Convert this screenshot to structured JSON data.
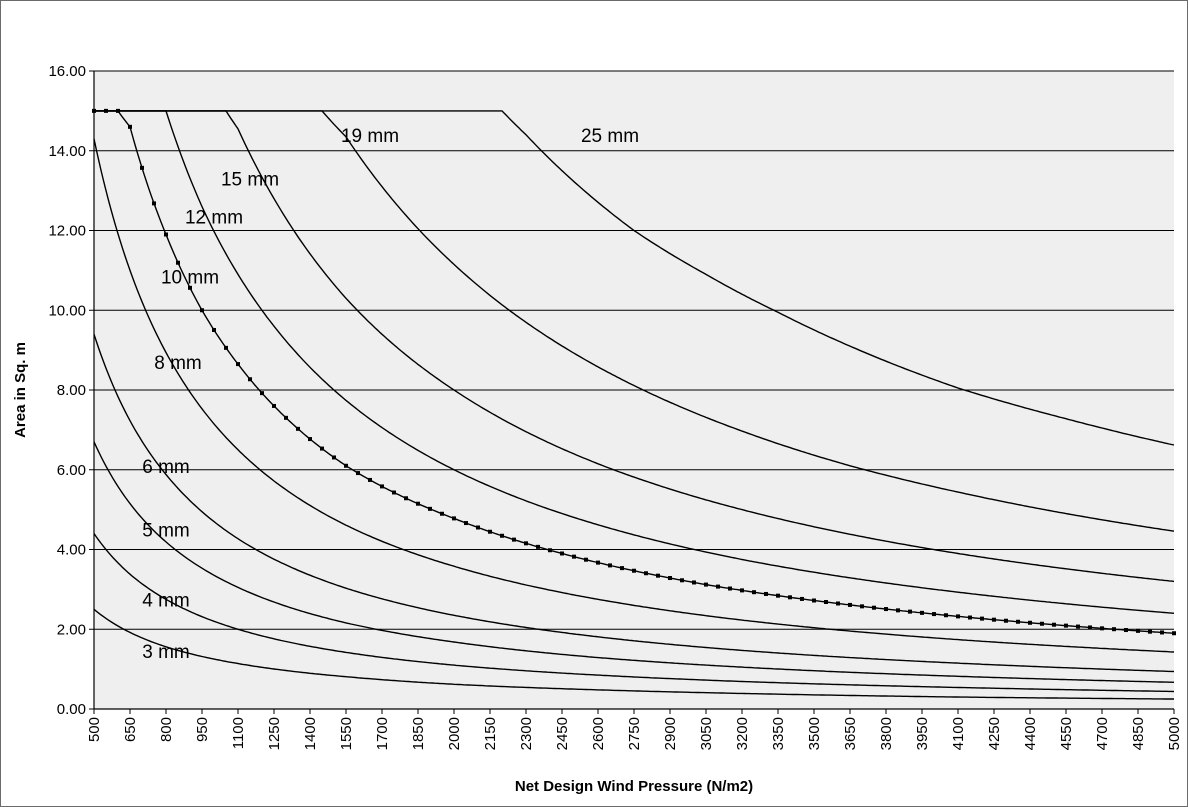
{
  "chart_data": {
    "type": "line",
    "title": "",
    "xlabel": "Net Design Wind Pressure (N/m2)",
    "ylabel": "Area in Sq. m",
    "xlim": [
      500,
      5000
    ],
    "ylim": [
      0,
      16
    ],
    "x_ticks": [
      500,
      650,
      800,
      950,
      1100,
      1250,
      1400,
      1550,
      1700,
      1850,
      2000,
      2150,
      2300,
      2450,
      2600,
      2750,
      2900,
      3050,
      3200,
      3350,
      3500,
      3650,
      3800,
      3950,
      4100,
      4250,
      4400,
      4550,
      4700,
      4850,
      5000
    ],
    "y_ticks": [
      "0.00",
      "2.00",
      "4.00",
      "6.00",
      "8.00",
      "10.00",
      "12.00",
      "14.00",
      "16.00"
    ],
    "grid": "horizontal",
    "plot_background": "#efefef",
    "line_color": "#000000",
    "cap_area": 15.0,
    "series": [
      {
        "name": "3 mm",
        "x": [
          500,
          650,
          800,
          1100,
          1550,
          2000,
          2600,
          3200,
          4100,
          5000
        ],
        "values": [
          2.5,
          1.92,
          1.56,
          1.14,
          0.81,
          0.62,
          0.48,
          0.39,
          0.3,
          0.25
        ]
      },
      {
        "name": "4 mm",
        "x": [
          500,
          650,
          800,
          1100,
          1550,
          2000,
          2600,
          3200,
          4100,
          5000
        ],
        "values": [
          4.4,
          3.38,
          2.75,
          2.0,
          1.42,
          1.1,
          0.85,
          0.69,
          0.54,
          0.44
        ]
      },
      {
        "name": "5 mm",
        "x": [
          500,
          650,
          800,
          1100,
          1550,
          2000,
          2600,
          3200,
          4100,
          5000
        ],
        "values": [
          6.7,
          5.15,
          4.19,
          3.05,
          2.16,
          1.68,
          1.29,
          1.05,
          0.82,
          0.67
        ]
      },
      {
        "name": "6 mm",
        "x": [
          500,
          650,
          800,
          1100,
          1550,
          2000,
          2600,
          3200,
          4100,
          5000
        ],
        "values": [
          9.4,
          7.23,
          5.88,
          4.27,
          3.03,
          2.35,
          1.81,
          1.47,
          1.15,
          0.94
        ]
      },
      {
        "name": "8 mm",
        "x": [
          500,
          650,
          800,
          1100,
          1550,
          2000,
          2600,
          3200,
          4100,
          5000
        ],
        "values": [
          14.3,
          11.0,
          8.94,
          6.5,
          4.61,
          3.58,
          2.75,
          2.23,
          1.74,
          1.43
        ]
      },
      {
        "name": "10 mm",
        "x": [
          500,
          600,
          650,
          800,
          950,
          1100,
          1250,
          1550,
          2000,
          2450,
          3050,
          3650,
          4250,
          5000
        ],
        "values": [
          15.0,
          15.0,
          14.6,
          11.9,
          10.0,
          8.65,
          7.6,
          6.1,
          4.78,
          3.9,
          3.12,
          2.61,
          2.24,
          1.9
        ]
      },
      {
        "name": "12 mm",
        "x": [
          500,
          800,
          950,
          1100,
          1250,
          1550,
          2000,
          2600,
          3200,
          4100,
          5000
        ],
        "values": [
          15.0,
          15.0,
          12.6,
          10.9,
          9.6,
          7.74,
          6.0,
          4.62,
          3.75,
          2.93,
          2.4
        ]
      },
      {
        "name": "15 mm",
        "x": [
          500,
          1050,
          1100,
          1250,
          1550,
          2000,
          2600,
          3200,
          4100,
          5000
        ],
        "values": [
          15.0,
          15.0,
          14.55,
          12.8,
          10.3,
          8.0,
          6.15,
          5.0,
          3.9,
          3.2
        ]
      },
      {
        "name": "19 mm",
        "x": [
          500,
          1450,
          1550,
          1700,
          2000,
          2600,
          3200,
          3650,
          4100,
          5000
        ],
        "values": [
          15.0,
          15.0,
          14.35,
          13.1,
          11.15,
          8.58,
          6.97,
          6.1,
          5.44,
          4.46
        ]
      },
      {
        "name": "25 mm",
        "x": [
          500,
          2200,
          2300,
          2450,
          2750,
          3050,
          3350,
          3650,
          4100,
          4550,
          5000
        ],
        "values": [
          15.0,
          15.0,
          14.4,
          13.5,
          12.0,
          10.9,
          9.95,
          9.1,
          8.05,
          7.28,
          6.62
        ]
      }
    ],
    "marked_series": "10 mm",
    "annotations": [
      {
        "text": "3 mm",
        "x": 800,
        "y": 1.45
      },
      {
        "text": "4 mm",
        "x": 800,
        "y": 2.75
      },
      {
        "text": "5 mm",
        "x": 800,
        "y": 4.5
      },
      {
        "text": "6 mm",
        "x": 800,
        "y": 6.1
      },
      {
        "text": "8 mm",
        "x": 850,
        "y": 8.7
      },
      {
        "text": "10 mm",
        "x": 900,
        "y": 10.85
      },
      {
        "text": "12 mm",
        "x": 1000,
        "y": 12.35
      },
      {
        "text": "15 mm",
        "x": 1150,
        "y": 13.3
      },
      {
        "text": "19 mm",
        "x": 1650,
        "y": 14.4
      },
      {
        "text": "25 mm",
        "x": 2650,
        "y": 14.4
      }
    ]
  }
}
